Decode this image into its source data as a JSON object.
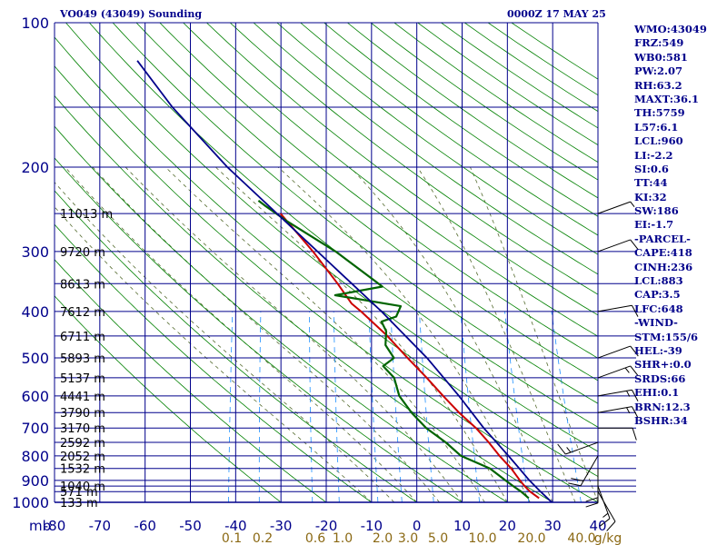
{
  "header": {
    "station": "VO049 (43049) Sounding",
    "time": "0000Z 17 MAY 25"
  },
  "indices": [
    "WMO:43049",
    "FRZ:549",
    "WB0:581",
    "PW:2.07",
    "RH:63.2",
    "MAXT:36.1",
    "TH:5759",
    "L57:6.1",
    "LCL:960",
    "LI:-2.2",
    "SI:0.6",
    "TT:44",
    "KI:32",
    "SW:186",
    "EI:-1.7",
    "-PARCEL-",
    "CAPE:418",
    "CINH:236",
    "LCL:883",
    "CAP:3.5",
    "LFC:648",
    "-WIND-",
    "STM:155/6",
    "HEL:-39",
    "SHR+:0.0",
    "SRDS:66",
    "EHI:0.1",
    "BRN:12.3",
    "BSHR:34"
  ],
  "colors": {
    "frame": "#00008b",
    "dry_adiabat": "#008000",
    "moist_adiabat": "#556b2f",
    "mixing_ratio": "#1e90ff",
    "temperature": "#cc0000",
    "dewpoint": "#006400",
    "parcel": "#00008b",
    "mixing_label": "#8b6914"
  },
  "chart_data": {
    "type": "skew-t log-p sounding",
    "pressure_axis": {
      "unit": "mb",
      "range": [
        1000,
        100
      ],
      "scale": "log",
      "ticks": [
        100,
        200,
        300,
        400,
        500,
        600,
        700,
        800,
        900,
        1000
      ]
    },
    "temperature_axis": {
      "unit": "C",
      "range": [
        -80,
        40
      ],
      "ticks": [
        "-80",
        "-70",
        "-60",
        "-50",
        "-40",
        "-30",
        "-20",
        "-10",
        "0",
        "10",
        "20",
        "30",
        "40"
      ]
    },
    "unit_label": "mb",
    "mixing_ratio_labels": [
      "0.1",
      "0.2",
      "0.6",
      "1.0",
      "2.0",
      "3.0",
      "5.0",
      "10.0",
      "20.0",
      "40.0"
    ],
    "mixing_ratio_unit": "g/kg",
    "mixing_ratio_values": [
      0.1,
      0.2,
      0.6,
      1.0,
      2.0,
      3.0,
      5.0,
      10.0,
      20.0,
      40.0
    ],
    "mandatory_levels": [
      {
        "p": 1000,
        "label": "133 m"
      },
      {
        "p": 950,
        "label": "571 m"
      },
      {
        "p": 925,
        "label": "1040 m"
      },
      {
        "p": 850,
        "label": "1532 m"
      },
      {
        "p": 800,
        "label": "2052 m"
      },
      {
        "p": 750,
        "label": "2592 m"
      },
      {
        "p": 700,
        "label": "3170 m"
      },
      {
        "p": 650,
        "label": "3790 m"
      },
      {
        "p": 600,
        "label": "4441 m"
      },
      {
        "p": 550,
        "label": "5137 m"
      },
      {
        "p": 500,
        "label": "5893 m"
      },
      {
        "p": 450,
        "label": "6711 m"
      },
      {
        "p": 400,
        "label": "7612 m"
      },
      {
        "p": 350,
        "label": "8613 m"
      },
      {
        "p": 300,
        "label": "9720 m"
      },
      {
        "p": 250,
        "label": "11013 m"
      }
    ],
    "series": [
      {
        "key": "temperature",
        "points": [
          [
            980,
            26.8
          ],
          [
            950,
            24.5
          ],
          [
            925,
            23.0
          ],
          [
            900,
            21.7
          ],
          [
            850,
            19.2
          ],
          [
            800,
            16.0
          ],
          [
            750,
            13.0
          ],
          [
            700,
            9.5
          ],
          [
            650,
            5.0
          ],
          [
            600,
            0.7
          ],
          [
            550,
            -3.8
          ],
          [
            500,
            -9.0
          ],
          [
            450,
            -14.5
          ],
          [
            400,
            -21.5
          ],
          [
            385,
            -24.0
          ],
          [
            350,
            -28.0
          ],
          [
            300,
            -35.0
          ],
          [
            250,
            -44.0
          ]
        ]
      },
      {
        "key": "dewpoint",
        "points": [
          [
            980,
            24.5
          ],
          [
            950,
            22.5
          ],
          [
            925,
            20.5
          ],
          [
            900,
            18.5
          ],
          [
            850,
            14.5
          ],
          [
            800,
            7.5
          ],
          [
            750,
            3.5
          ],
          [
            700,
            -1.5
          ],
          [
            650,
            -5.5
          ],
          [
            600,
            -9.0
          ],
          [
            550,
            -11.0
          ],
          [
            520,
            -14.0
          ],
          [
            500,
            -12.0
          ],
          [
            470,
            -14.5
          ],
          [
            440,
            -15.0
          ],
          [
            420,
            -16.5
          ],
          [
            410,
            -13.5
          ],
          [
            390,
            -13.0
          ],
          [
            370,
            -28.0
          ],
          [
            355,
            -18.0
          ],
          [
            345,
            -20.0
          ],
          [
            300,
            -30.0
          ],
          [
            260,
            -42.0
          ],
          [
            240,
            -48.0
          ],
          [
            235,
            -49.5
          ]
        ]
      },
      {
        "key": "parcel",
        "points": [
          [
            1000,
            29.8
          ],
          [
            950,
            26.8
          ],
          [
            900,
            23.8
          ],
          [
            850,
            21.0
          ],
          [
            800,
            18.0
          ],
          [
            700,
            11.2
          ],
          [
            600,
            4.2
          ],
          [
            500,
            -4.7
          ],
          [
            400,
            -17.0
          ],
          [
            300,
            -34.0
          ],
          [
            200,
            -58.0
          ],
          [
            150,
            -73.0
          ],
          [
            120,
            -83.0
          ]
        ]
      }
    ],
    "wind_barbs": [
      {
        "p": 950,
        "dir": 150,
        "kt": 10
      },
      {
        "p": 925,
        "dir": 160,
        "kt": 15
      },
      {
        "p": 850,
        "dir": 180,
        "kt": 20
      },
      {
        "p": 800,
        "dir": 210,
        "kt": 20
      },
      {
        "p": 750,
        "dir": 250,
        "kt": 15
      },
      {
        "p": 700,
        "dir": 90,
        "kt": 10
      },
      {
        "p": 650,
        "dir": 80,
        "kt": 15
      },
      {
        "p": 600,
        "dir": 80,
        "kt": 15
      },
      {
        "p": 550,
        "dir": 70,
        "kt": 15
      },
      {
        "p": 500,
        "dir": 70,
        "kt": 10
      },
      {
        "p": 400,
        "dir": 80,
        "kt": 10
      },
      {
        "p": 300,
        "dir": 70,
        "kt": 10
      },
      {
        "p": 250,
        "dir": 70,
        "kt": 5
      }
    ]
  }
}
